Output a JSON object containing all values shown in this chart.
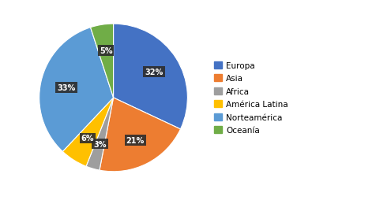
{
  "labels": [
    "Europa",
    "Asia",
    "Africa",
    "América Latina",
    "Norteamérica",
    "Oceanía"
  ],
  "values": [
    32,
    21,
    3,
    6,
    33,
    5
  ],
  "colors": [
    "#4472C4",
    "#ED7D31",
    "#9E9E9E",
    "#FFC000",
    "#5B9BD5",
    "#70AD47"
  ],
  "pct_labels": [
    "32%",
    "21%",
    "3%",
    "6%",
    "33%",
    "5%"
  ],
  "bg_color": "#FFFFFF",
  "startangle": 90,
  "figsize": [
    4.95,
    2.55
  ],
  "dpi": 100,
  "label_radii": [
    0.65,
    0.65,
    0.65,
    0.65,
    0.65,
    0.65
  ]
}
